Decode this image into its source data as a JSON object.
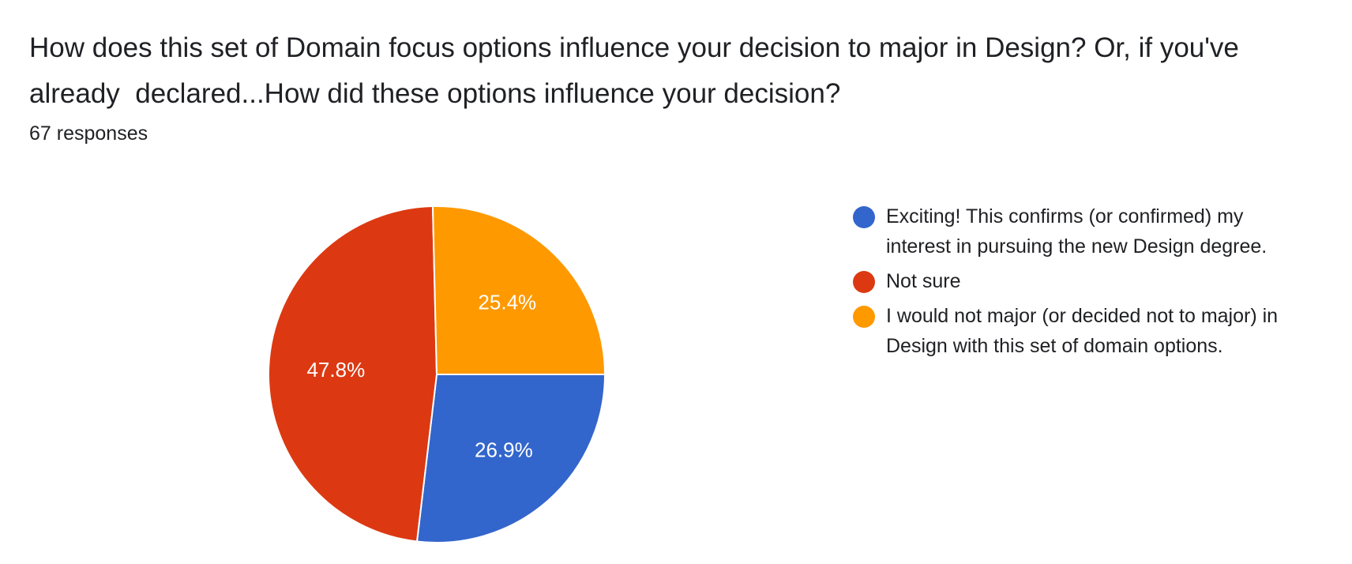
{
  "question": {
    "title": "How does this set of Domain focus options influence your decision to major in Design? Or, if you've already  declared...How did these options influence your decision?",
    "responses": "67 responses"
  },
  "chart_data": {
    "type": "pie",
    "title": "",
    "slices": [
      {
        "label": "Exciting! This confirms (or confirmed) my interest in pursuing the new Design degree.",
        "value": 26.9,
        "display": "26.9%",
        "color": "#3366cc"
      },
      {
        "label": "Not sure",
        "value": 47.8,
        "display": "47.8%",
        "color": "#dc3912"
      },
      {
        "label": "I would not major (or decided not to major) in Design with this set of domain options.",
        "value": 25.4,
        "display": "25.4%",
        "color": "#ff9900"
      }
    ],
    "legend_position": "right"
  }
}
